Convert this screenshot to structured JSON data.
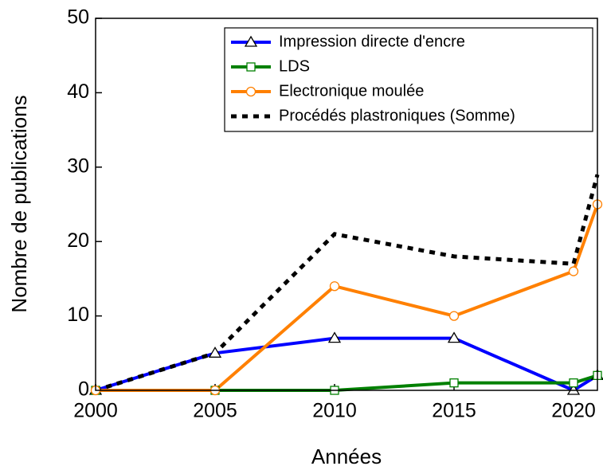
{
  "chart_data": {
    "type": "line",
    "xlabel": "Années",
    "ylabel": "Nombre de publications",
    "x": [
      2000,
      2005,
      2010,
      2015,
      2020,
      2021
    ],
    "xlim": [
      2000,
      2021
    ],
    "xticks": [
      2000,
      2005,
      2010,
      2015,
      2020
    ],
    "ylim": [
      0,
      50
    ],
    "yticks": [
      0,
      10,
      20,
      30,
      40,
      50
    ],
    "legend": "upper right",
    "series": [
      {
        "name": "Impression directe d'encre",
        "color": "#0000ff",
        "marker": "triangle",
        "values": [
          0,
          5,
          7,
          7,
          0,
          2
        ]
      },
      {
        "name": "LDS",
        "color": "#008000",
        "marker": "square",
        "values": [
          0,
          0,
          0,
          1,
          1,
          2
        ]
      },
      {
        "name": "Electronique moulée",
        "color": "#ff8000",
        "marker": "circle",
        "values": [
          0,
          0,
          14,
          10,
          16,
          25
        ]
      },
      {
        "name": "Procédés plastroniques (Somme)",
        "color": "#000000",
        "dash": true,
        "values": [
          0,
          5,
          21,
          18,
          17,
          29
        ]
      }
    ]
  }
}
